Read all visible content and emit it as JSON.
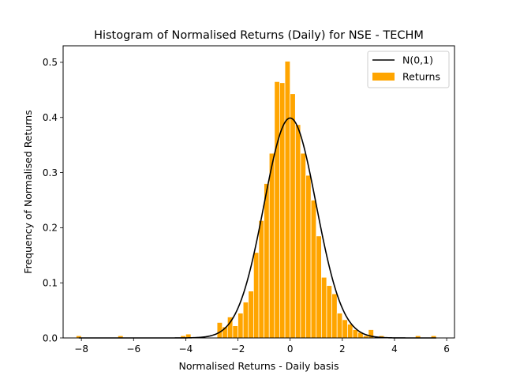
{
  "chart_data": {
    "type": "bar",
    "title": "Histogram of Normalised Returns (Daily) for NSE - TECHM",
    "xlabel": "Normalised Returns - Daily basis",
    "ylabel": "Frequency of Normalised Returns",
    "xlim": [
      -8.7,
      6.3
    ],
    "ylim": [
      0,
      0.53
    ],
    "xticks": [
      -8,
      -6,
      -4,
      -2,
      0,
      2,
      4,
      6
    ],
    "yticks": [
      0.0,
      0.1,
      0.2,
      0.3,
      0.4,
      0.5
    ],
    "xtick_labels": [
      "−8",
      "−6",
      "−4",
      "−2",
      "0",
      "2",
      "4",
      "6"
    ],
    "ytick_labels": [
      "0.0",
      "0.1",
      "0.2",
      "0.3",
      "0.4",
      "0.5"
    ],
    "bin_width": 0.2,
    "grid": false,
    "legend": {
      "placement": "top-right",
      "entries": [
        "N(0,1)",
        "Returns"
      ]
    },
    "series": [
      {
        "name": "Returns",
        "kind": "histogram",
        "color": "#ffa500",
        "bins": [
          {
            "x": -8.1,
            "y": 0.004
          },
          {
            "x": -6.5,
            "y": 0.004
          },
          {
            "x": -4.1,
            "y": 0.004
          },
          {
            "x": -3.9,
            "y": 0.007
          },
          {
            "x": -2.7,
            "y": 0.028
          },
          {
            "x": -2.5,
            "y": 0.02
          },
          {
            "x": -2.3,
            "y": 0.038
          },
          {
            "x": -2.1,
            "y": 0.022
          },
          {
            "x": -1.9,
            "y": 0.045
          },
          {
            "x": -1.7,
            "y": 0.065
          },
          {
            "x": -1.5,
            "y": 0.085
          },
          {
            "x": -1.3,
            "y": 0.155
          },
          {
            "x": -1.1,
            "y": 0.213
          },
          {
            "x": -0.9,
            "y": 0.28
          },
          {
            "x": -0.7,
            "y": 0.335
          },
          {
            "x": -0.5,
            "y": 0.465
          },
          {
            "x": -0.3,
            "y": 0.463
          },
          {
            "x": -0.1,
            "y": 0.502
          },
          {
            "x": 0.1,
            "y": 0.443
          },
          {
            "x": 0.3,
            "y": 0.387
          },
          {
            "x": 0.5,
            "y": 0.335
          },
          {
            "x": 0.7,
            "y": 0.295
          },
          {
            "x": 0.9,
            "y": 0.25
          },
          {
            "x": 1.1,
            "y": 0.185
          },
          {
            "x": 1.3,
            "y": 0.11
          },
          {
            "x": 1.5,
            "y": 0.095
          },
          {
            "x": 1.7,
            "y": 0.08
          },
          {
            "x": 1.9,
            "y": 0.045
          },
          {
            "x": 2.1,
            "y": 0.033
          },
          {
            "x": 2.3,
            "y": 0.025
          },
          {
            "x": 2.5,
            "y": 0.015
          },
          {
            "x": 2.7,
            "y": 0.01
          },
          {
            "x": 2.9,
            "y": 0.004
          },
          {
            "x": 3.1,
            "y": 0.015
          },
          {
            "x": 3.5,
            "y": 0.004
          },
          {
            "x": 4.9,
            "y": 0.004
          },
          {
            "x": 5.5,
            "y": 0.004
          }
        ]
      },
      {
        "name": "N(0,1)",
        "kind": "line",
        "color": "#000000",
        "function": "standard-normal-pdf",
        "x_range": [
          -8.1,
          5.6
        ]
      }
    ]
  }
}
